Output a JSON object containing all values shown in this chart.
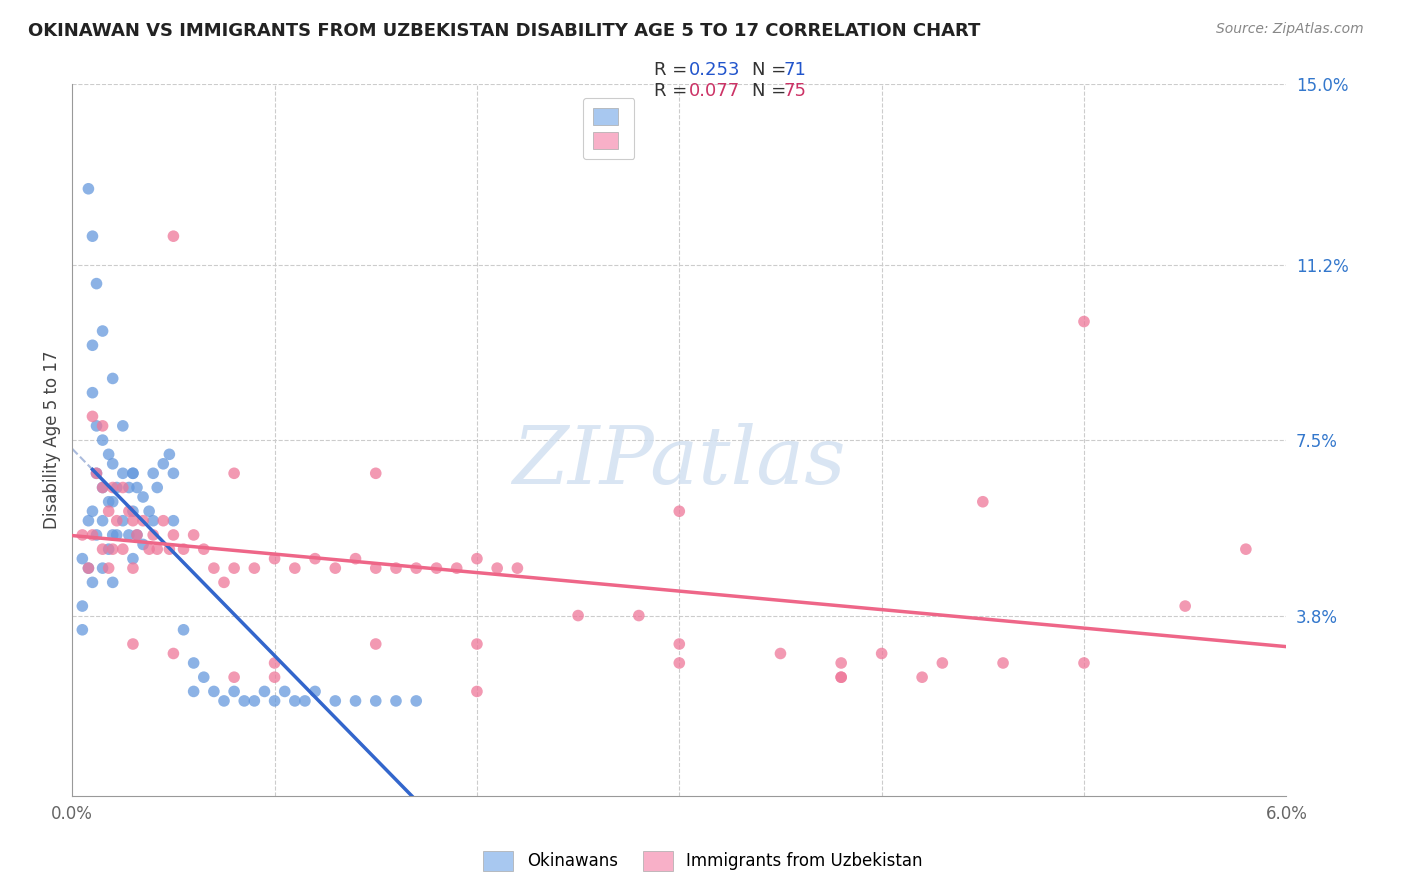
{
  "title": "OKINAWAN VS IMMIGRANTS FROM UZBEKISTAN DISABILITY AGE 5 TO 17 CORRELATION CHART",
  "source": "Source: ZipAtlas.com",
  "ylabel": "Disability Age 5 to 17",
  "x_min": 0.0,
  "x_max": 0.06,
  "y_min": 0.0,
  "y_max": 0.15,
  "x_tick_positions": [
    0.0,
    0.01,
    0.02,
    0.03,
    0.04,
    0.05,
    0.06
  ],
  "x_tick_labels": [
    "0.0%",
    "",
    "",
    "",
    "",
    "",
    "6.0%"
  ],
  "y_ticks_right": [
    0.0,
    0.038,
    0.075,
    0.112,
    0.15
  ],
  "y_tick_labels_right": [
    "",
    "3.8%",
    "7.5%",
    "11.2%",
    "15.0%"
  ],
  "okinawan_color": "#6699dd",
  "uzbekistan_color": "#ee7799",
  "okinawan_line_color": "#3366cc",
  "uzbekistan_line_color": "#ee6688",
  "dashed_line_color": "#aabbdd",
  "watermark_text": "ZIPatlas",
  "watermark_color": "#d0dff0",
  "grid_color": "#cccccc",
  "legend_patch_blue": "#a8c8f0",
  "legend_patch_pink": "#f8b0c8",
  "R_ok": 0.253,
  "N_ok": 71,
  "R_uz": 0.077,
  "N_uz": 75,
  "ok_x": [
    0.0005,
    0.0005,
    0.0005,
    0.0008,
    0.0008,
    0.001,
    0.001,
    0.001,
    0.001,
    0.0012,
    0.0012,
    0.0012,
    0.0015,
    0.0015,
    0.0015,
    0.0015,
    0.0018,
    0.0018,
    0.0018,
    0.002,
    0.002,
    0.002,
    0.002,
    0.0022,
    0.0022,
    0.0025,
    0.0025,
    0.0028,
    0.0028,
    0.003,
    0.003,
    0.003,
    0.0032,
    0.0032,
    0.0035,
    0.0035,
    0.0038,
    0.004,
    0.004,
    0.0042,
    0.0045,
    0.0048,
    0.005,
    0.005,
    0.0055,
    0.006,
    0.006,
    0.0065,
    0.007,
    0.0075,
    0.008,
    0.0085,
    0.009,
    0.0095,
    0.01,
    0.0105,
    0.011,
    0.0115,
    0.012,
    0.013,
    0.014,
    0.015,
    0.016,
    0.017,
    0.0008,
    0.001,
    0.0012,
    0.0015,
    0.002,
    0.0025,
    0.003
  ],
  "ok_y": [
    0.05,
    0.04,
    0.035,
    0.058,
    0.048,
    0.095,
    0.085,
    0.06,
    0.045,
    0.078,
    0.068,
    0.055,
    0.075,
    0.065,
    0.058,
    0.048,
    0.072,
    0.062,
    0.052,
    0.07,
    0.062,
    0.055,
    0.045,
    0.065,
    0.055,
    0.068,
    0.058,
    0.065,
    0.055,
    0.068,
    0.06,
    0.05,
    0.065,
    0.055,
    0.063,
    0.053,
    0.06,
    0.068,
    0.058,
    0.065,
    0.07,
    0.072,
    0.068,
    0.058,
    0.035,
    0.028,
    0.022,
    0.025,
    0.022,
    0.02,
    0.022,
    0.02,
    0.02,
    0.022,
    0.02,
    0.022,
    0.02,
    0.02,
    0.022,
    0.02,
    0.02,
    0.02,
    0.02,
    0.02,
    0.128,
    0.118,
    0.108,
    0.098,
    0.088,
    0.078,
    0.068
  ],
  "uz_x": [
    0.0005,
    0.0008,
    0.001,
    0.001,
    0.0012,
    0.0015,
    0.0015,
    0.0015,
    0.0018,
    0.0018,
    0.002,
    0.002,
    0.0022,
    0.0025,
    0.0025,
    0.0028,
    0.003,
    0.003,
    0.0032,
    0.0035,
    0.0038,
    0.004,
    0.0042,
    0.0045,
    0.0048,
    0.005,
    0.0055,
    0.006,
    0.0065,
    0.007,
    0.0075,
    0.008,
    0.009,
    0.01,
    0.011,
    0.012,
    0.013,
    0.014,
    0.015,
    0.016,
    0.017,
    0.018,
    0.019,
    0.02,
    0.021,
    0.022,
    0.025,
    0.028,
    0.03,
    0.035,
    0.038,
    0.04,
    0.043,
    0.046,
    0.05,
    0.003,
    0.005,
    0.008,
    0.01,
    0.015,
    0.02,
    0.03,
    0.038,
    0.042,
    0.005,
    0.008,
    0.01,
    0.015,
    0.02,
    0.03,
    0.038,
    0.05,
    0.058,
    0.055,
    0.045
  ],
  "uz_y": [
    0.055,
    0.048,
    0.08,
    0.055,
    0.068,
    0.078,
    0.065,
    0.052,
    0.06,
    0.048,
    0.065,
    0.052,
    0.058,
    0.065,
    0.052,
    0.06,
    0.058,
    0.048,
    0.055,
    0.058,
    0.052,
    0.055,
    0.052,
    0.058,
    0.052,
    0.055,
    0.052,
    0.055,
    0.052,
    0.048,
    0.045,
    0.048,
    0.048,
    0.05,
    0.048,
    0.05,
    0.048,
    0.05,
    0.048,
    0.048,
    0.048,
    0.048,
    0.048,
    0.05,
    0.048,
    0.048,
    0.038,
    0.038,
    0.032,
    0.03,
    0.028,
    0.03,
    0.028,
    0.028,
    0.028,
    0.032,
    0.03,
    0.025,
    0.028,
    0.032,
    0.032,
    0.028,
    0.025,
    0.025,
    0.118,
    0.068,
    0.025,
    0.068,
    0.022,
    0.06,
    0.025,
    0.1,
    0.052,
    0.04,
    0.062
  ]
}
